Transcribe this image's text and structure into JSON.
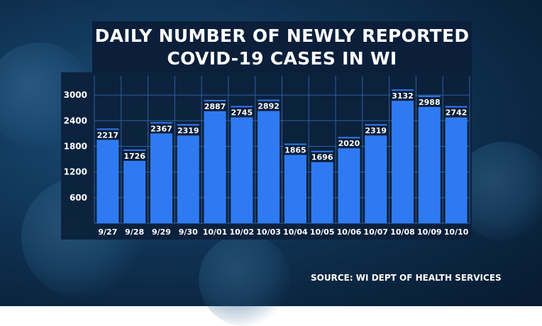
{
  "title_lines": [
    "DAILY NUMBER OF NEWLY REPORTED",
    "COVID-19 CASES IN WI"
  ],
  "source": "SOURCE: WI DEPT OF HEALTH SERVICES",
  "colors": {
    "bar": "#2f7af2",
    "panel": "#0b1f3a",
    "grid": "#2e5fa0",
    "text": "#ffffff",
    "label_bg": "#0b1f3a"
  },
  "chart_data": {
    "type": "bar",
    "title": "DAILY NUMBER OF NEWLY REPORTED COVID-19 CASES IN WI",
    "categories": [
      "9/27",
      "9/28",
      "9/29",
      "9/30",
      "10/01",
      "10/02",
      "10/03",
      "10/04",
      "10/05",
      "10/06",
      "10/07",
      "10/08",
      "10/09",
      "10/10"
    ],
    "values": [
      2217,
      1726,
      2367,
      2319,
      2887,
      2745,
      2892,
      1865,
      1696,
      2020,
      2319,
      3132,
      2988,
      2742
    ],
    "yticks": [
      600,
      1200,
      1800,
      2400,
      3000
    ],
    "ylim": [
      0,
      3450
    ],
    "grid": true,
    "data_labels": true
  }
}
